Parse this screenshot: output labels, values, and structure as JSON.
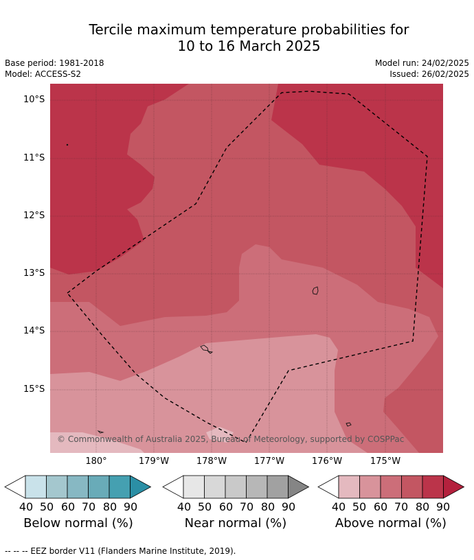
{
  "header": {
    "title_line1": "Tercile maximum temperature probabilities for",
    "title_line2": "10 to 16 March 2025",
    "base_period": "Base period: 1981-2018",
    "model": "Model: ACCESS-S2",
    "model_run": "Model run: 24/02/2025",
    "issued": "Issued: 26/02/2025"
  },
  "map": {
    "lat_labels": [
      "10°S",
      "11°S",
      "12°S",
      "13°S",
      "14°S",
      "15°S"
    ],
    "lon_labels": [
      "180°",
      "179°W",
      "178°W",
      "177°W",
      "176°W",
      "175°W"
    ],
    "copyright": "© Commonwealth of Australia 2025, Bureau of Meteorology, supported by COSPPac"
  },
  "legend": {
    "ticks": [
      "40",
      "50",
      "60",
      "70",
      "80",
      "90"
    ],
    "below": {
      "title": "Below normal (%)",
      "colors": [
        "#c9e2ea",
        "#a4c7ce",
        "#87b8c3",
        "#69abb8",
        "#45a0b1",
        "#2b8fa5"
      ]
    },
    "near": {
      "title": "Near normal (%)",
      "colors": [
        "#e7e7e7",
        "#d8d8d8",
        "#c9c9c9",
        "#b7b7b7",
        "#a1a1a1",
        "#858585"
      ]
    },
    "above": {
      "title": "Above normal (%)",
      "colors": [
        "#e4b9bf",
        "#d8939b",
        "#cc6e79",
        "#c35662",
        "#bb344a",
        "#b4213d"
      ]
    }
  },
  "footnote": "--  --  -- EEZ border V11 (Flanders Marine Institute, 2019)."
}
